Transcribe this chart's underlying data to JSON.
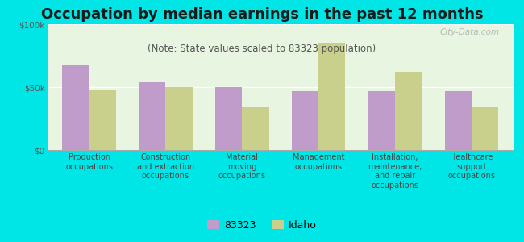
{
  "title": "Occupation by median earnings in the past 12 months",
  "subtitle": "(Note: State values scaled to 83323 population)",
  "categories": [
    "Production\noccupations",
    "Construction\nand extraction\noccupations",
    "Material\nmoving\noccupations",
    "Management\noccupations",
    "Installation,\nmaintenance,\nand repair\noccupations",
    "Healthcare\nsupport\noccupations"
  ],
  "values_83323": [
    68000,
    54000,
    50000,
    47000,
    47000,
    47000
  ],
  "values_idaho": [
    48000,
    50000,
    34000,
    85000,
    62000,
    34000
  ],
  "color_83323": "#bf9cc9",
  "color_idaho": "#c8d08c",
  "background_plot": "#e8f5e0",
  "background_fig": "#00e5e5",
  "ylim": [
    0,
    100000
  ],
  "ytick_labels": [
    "$0",
    "$50k",
    "$100k"
  ],
  "legend_label_83323": "83323",
  "legend_label_idaho": "Idaho",
  "bar_width": 0.35,
  "title_fontsize": 13,
  "subtitle_fontsize": 8.5,
  "tick_fontsize": 7.5,
  "legend_fontsize": 9,
  "watermark": "City-Data.com"
}
